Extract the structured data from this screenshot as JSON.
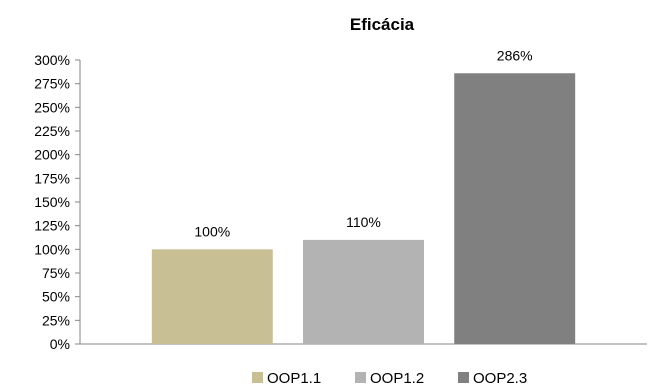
{
  "chart_data": {
    "type": "bar",
    "title": "Eficácia",
    "xlabel": "",
    "ylabel": "",
    "ylim": [
      0,
      300
    ],
    "yticks": [
      0,
      25,
      50,
      75,
      100,
      125,
      150,
      175,
      200,
      225,
      250,
      275,
      300
    ],
    "tick_suffix": "%",
    "grid": false,
    "legend_position": "bottom",
    "series": [
      {
        "name": "OOP1.1",
        "value": 100,
        "label": "100%",
        "color": "#c8bf95"
      },
      {
        "name": "OOP1.2",
        "value": 110,
        "label": "110%",
        "color": "#b3b3b3"
      },
      {
        "name": "OOP2.3",
        "value": 286,
        "label": "286%",
        "color": "#808080"
      }
    ]
  }
}
